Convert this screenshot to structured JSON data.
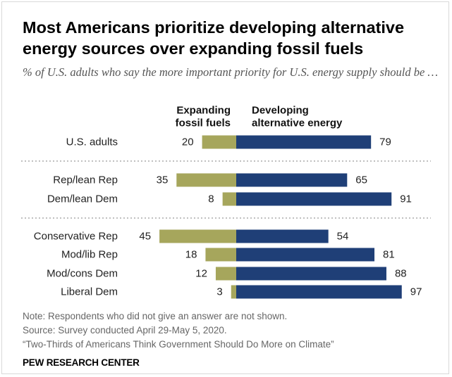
{
  "title": "Most Americans prioritize developing alternative energy sources over expanding fossil fuels",
  "subtitle": "% of U.S. adults who say the more important priority for U.S. energy supply should be …",
  "chart_data": {
    "type": "bar",
    "orientation": "horizontal-diverging",
    "series": [
      {
        "name": "Expanding fossil fuels",
        "color": "#a6a65c",
        "values": [
          20,
          35,
          8,
          45,
          18,
          12,
          3
        ]
      },
      {
        "name": "Developing alternative energy",
        "color": "#1f3f77",
        "values": [
          79,
          65,
          91,
          54,
          81,
          88,
          97
        ]
      }
    ],
    "categories": [
      "U.S. adults",
      "Rep/lean Rep",
      "Dem/lean Dem",
      "Conservative Rep",
      "Mod/lib Rep",
      "Mod/cons Dem",
      "Liberal Dem"
    ],
    "groups": [
      [
        0
      ],
      [
        1,
        2
      ],
      [
        3,
        4,
        5,
        6
      ]
    ],
    "legend_lines": [
      [
        "Expanding",
        "fossil fuels"
      ],
      [
        "Developing",
        "alternative energy"
      ]
    ],
    "xlim": [
      0,
      100
    ],
    "grid": false
  },
  "notes": [
    "Note: Respondents who did not give an answer are not shown.",
    "Source: Survey conducted April 29-May 5, 2020.",
    "“Two-Thirds of Americans Think Government Should Do More on Climate”"
  ],
  "brand": "PEW RESEARCH CENTER"
}
